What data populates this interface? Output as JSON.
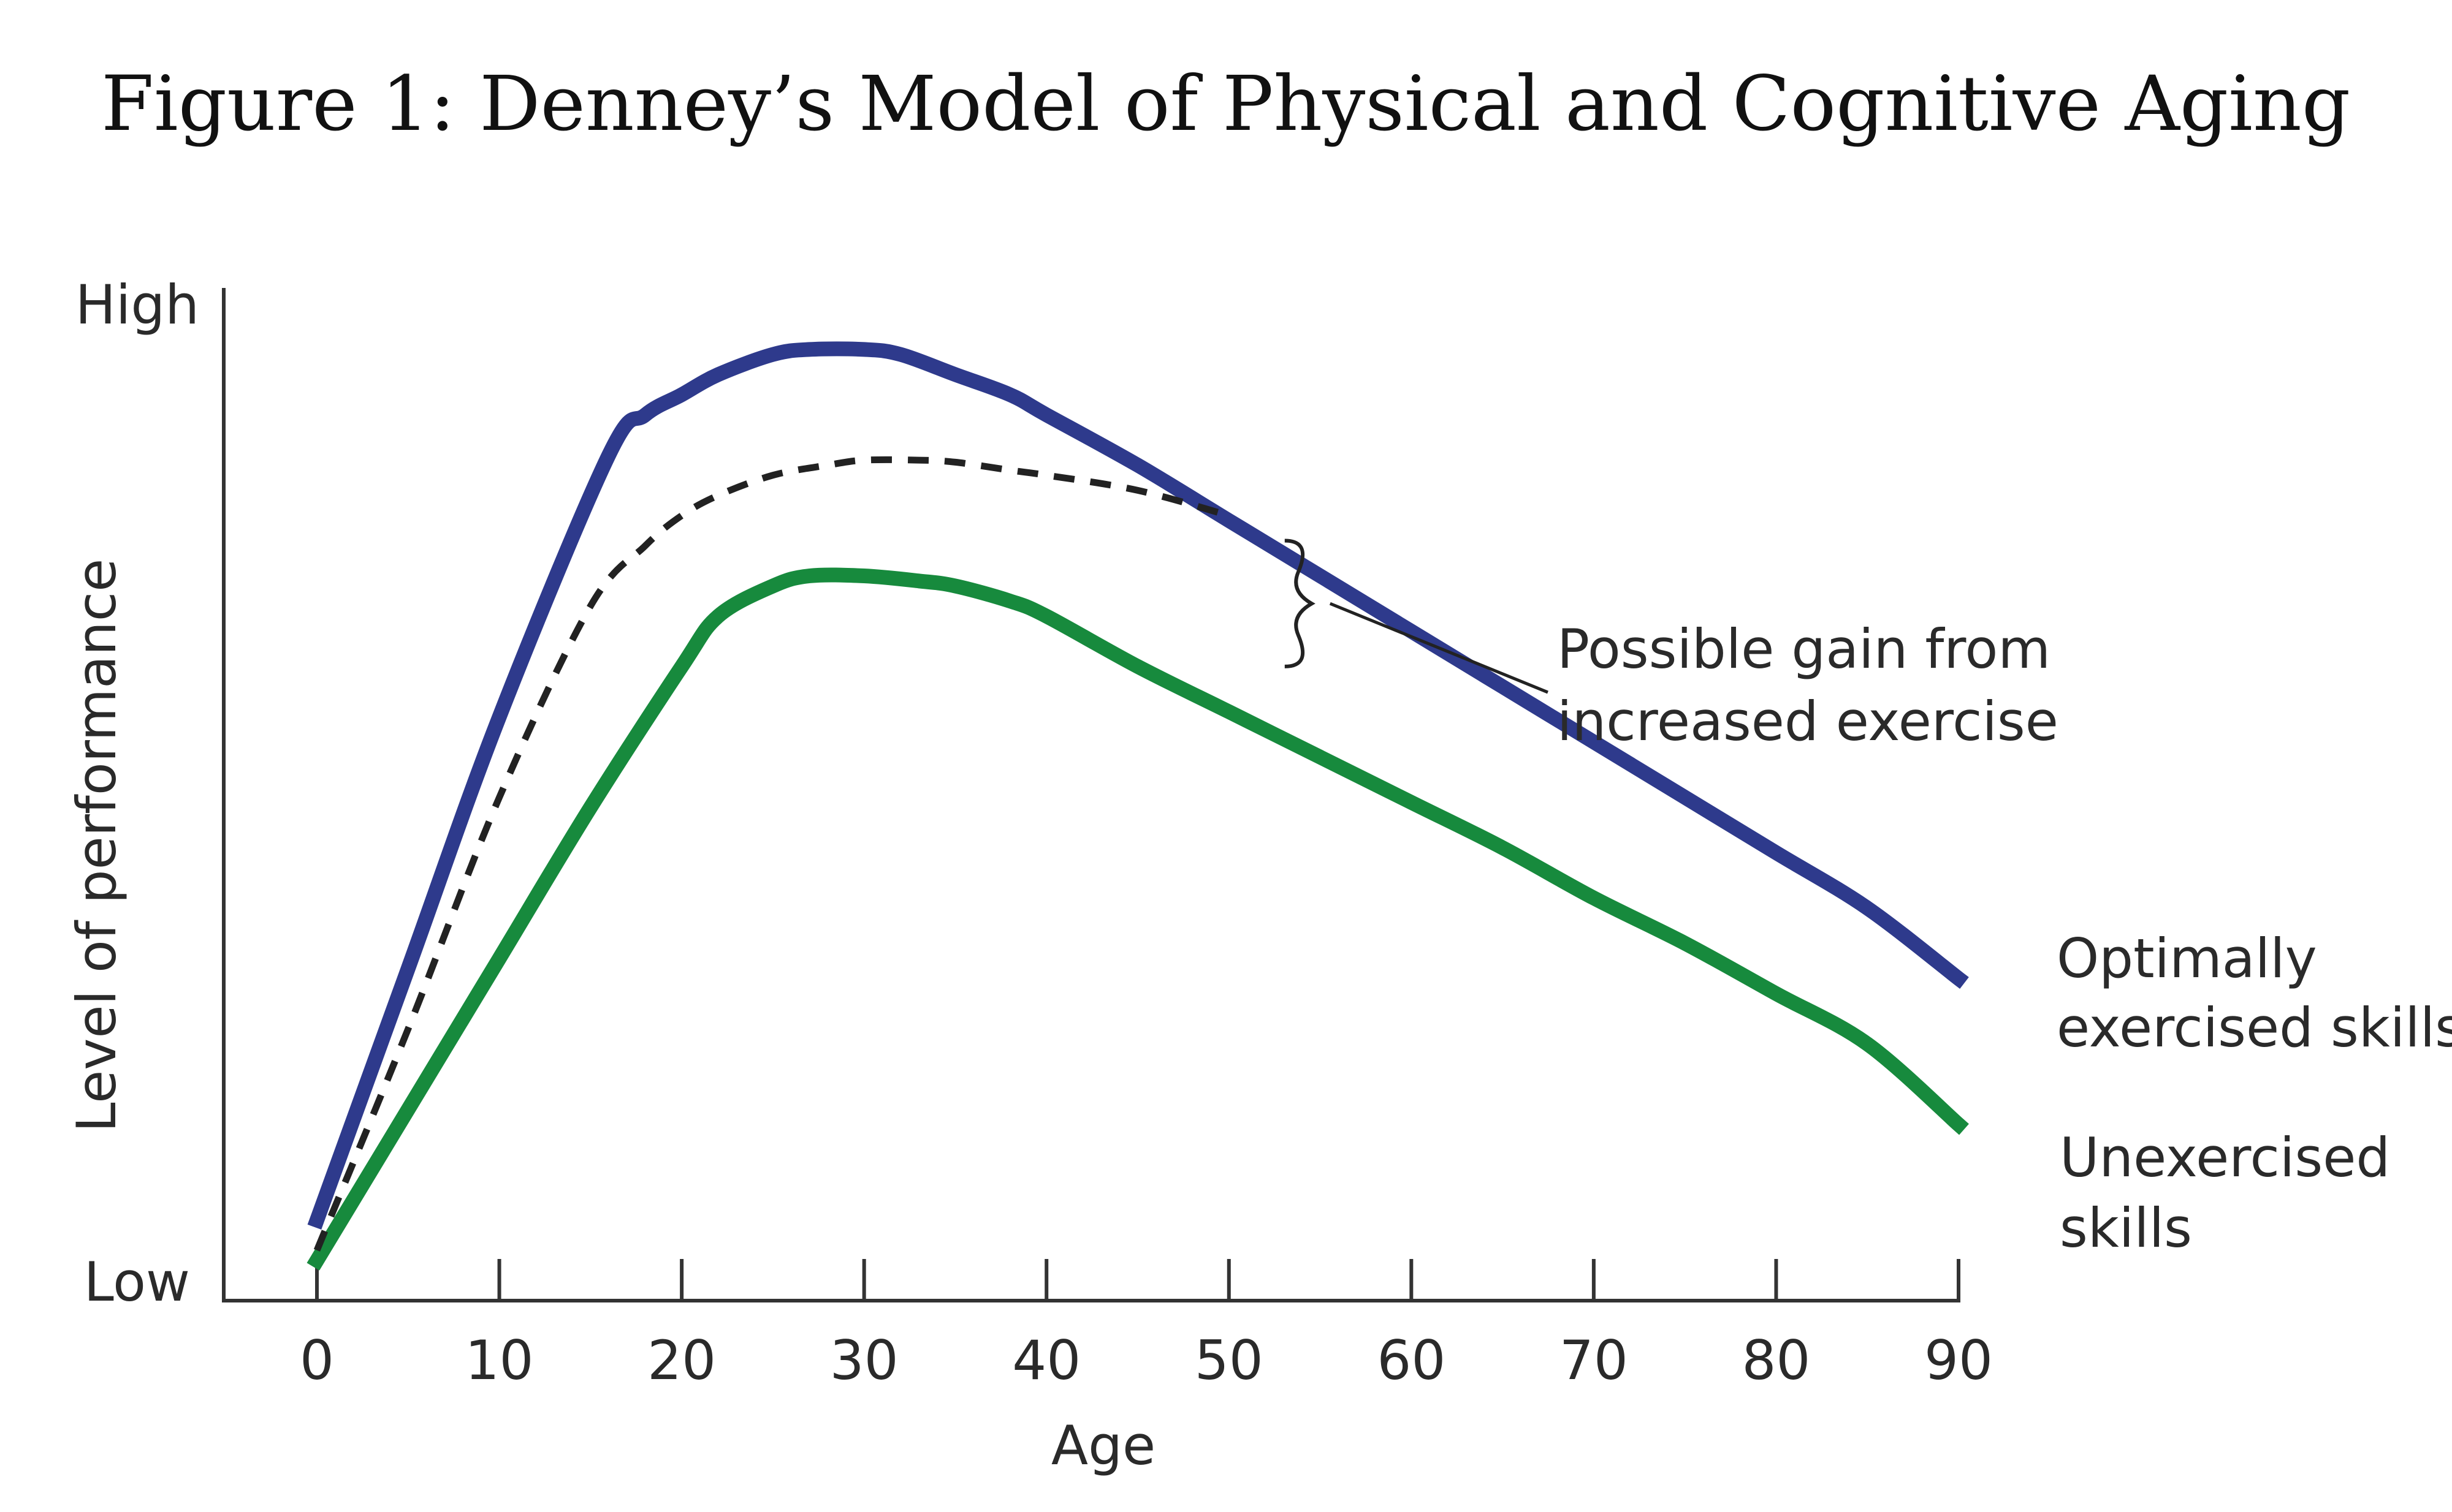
{
  "chart_data": {
    "type": "line",
    "title": "Figure 1: Denney’s Model of Physical and Cognitive Aging",
    "xlabel": "Age",
    "ylabel": "Level of performance",
    "y_tick_labels": {
      "high": "High",
      "low": "Low"
    },
    "xlim": [
      0,
      90
    ],
    "ylim": [
      0,
      100
    ],
    "x_ticks": [
      0,
      10,
      20,
      30,
      40,
      50,
      60,
      70,
      80,
      90
    ],
    "grid": false,
    "series": [
      {
        "name": "Optimally exercised skills",
        "label_lines": [
          "Optimally",
          "exercised skills"
        ],
        "color": "#2e3a8c",
        "style": "solid",
        "x": [
          0,
          5,
          10,
          16,
          18,
          20,
          22,
          25,
          27,
          30,
          32,
          35,
          38,
          40,
          45,
          50,
          55,
          60,
          65,
          70,
          75,
          80,
          85,
          90
        ],
        "y": [
          8,
          33,
          58,
          84,
          88,
          90,
          92,
          94,
          94.5,
          94.5,
          94,
          92,
          90,
          88,
          83,
          77.5,
          72,
          66.5,
          61,
          55.5,
          50,
          44.5,
          39,
          32
        ]
      },
      {
        "name": "Unexercised skills",
        "label_lines": [
          "Unexercised",
          "skills"
        ],
        "color": "#178a3d",
        "style": "solid",
        "x": [
          0,
          5,
          10,
          15,
          20,
          22,
          25,
          27,
          30,
          33,
          35,
          38,
          40,
          45,
          50,
          55,
          60,
          65,
          70,
          75,
          80,
          85,
          90
        ],
        "y": [
          4,
          19,
          34,
          49,
          63,
          68,
          71,
          72,
          72,
          71.5,
          71,
          69.5,
          68,
          63,
          58.5,
          54,
          49.5,
          45,
          40,
          35.5,
          30.5,
          25.5,
          17.5
        ]
      },
      {
        "name": "",
        "color": "#222222",
        "style": "dashed",
        "x": [
          0,
          5,
          10,
          15,
          18,
          20,
          22,
          25,
          28,
          30,
          33,
          35,
          38,
          40,
          45,
          50
        ],
        "y": [
          5,
          27,
          50,
          69,
          75,
          78,
          80,
          82,
          83,
          83.5,
          83.5,
          83.3,
          82.5,
          82,
          80.5,
          78
        ]
      }
    ],
    "annotations": [
      {
        "lines": [
          "Possible gain from",
          "increased exercise"
        ],
        "brace_x": 54,
        "brace_y_range": [
          63,
          75.5
        ]
      }
    ]
  }
}
